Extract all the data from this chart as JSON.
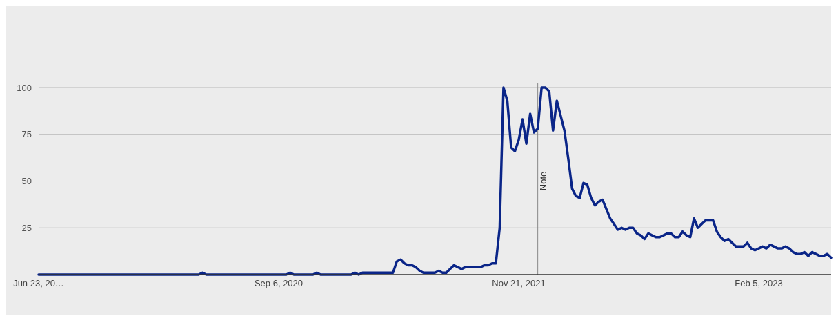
{
  "chart_data": {
    "type": "line",
    "xlim": [
      "2019-06-23",
      "2023-06-18"
    ],
    "ylim": [
      0,
      100
    ],
    "xticks": [
      {
        "value": "2019-06-23",
        "label": "Jun 23, 20…"
      },
      {
        "value": "2020-09-06",
        "label": "Sep 6, 2020"
      },
      {
        "value": "2021-11-21",
        "label": "Nov 21, 2021"
      },
      {
        "value": "2023-02-05",
        "label": "Feb 5, 2023"
      }
    ],
    "yticks": [
      25,
      50,
      75,
      100
    ],
    "grid": "y",
    "marker": "none",
    "line_style": "solid",
    "ref_lines": [
      {
        "axis": "x",
        "value": "2021-12-26",
        "label": "Note",
        "color": "#888888"
      }
    ],
    "series": [
      {
        "color": "#0a2588",
        "x": [
          "2019-06-23",
          "2020-04-12",
          "2020-04-19",
          "2020-04-26",
          "2020-09-20",
          "2020-09-27",
          "2020-10-04",
          "2020-11-08",
          "2020-11-15",
          "2020-11-22",
          "2021-01-17",
          "2021-01-24",
          "2021-01-31",
          "2021-02-07",
          "2021-04-04",
          "2021-04-11",
          "2021-04-18",
          "2021-04-25",
          "2021-05-02",
          "2021-05-09",
          "2021-05-16",
          "2021-05-23",
          "2021-05-30",
          "2021-06-06",
          "2021-06-13",
          "2021-06-20",
          "2021-06-27",
          "2021-07-04",
          "2021-07-11",
          "2021-07-18",
          "2021-07-25",
          "2021-08-01",
          "2021-08-08",
          "2021-08-15",
          "2021-08-22",
          "2021-08-29",
          "2021-09-05",
          "2021-09-12",
          "2021-09-19",
          "2021-09-26",
          "2021-10-03",
          "2021-10-10",
          "2021-10-17",
          "2021-10-24",
          "2021-10-31",
          "2021-11-07",
          "2021-11-14",
          "2021-11-21",
          "2021-11-28",
          "2021-12-05",
          "2021-12-12",
          "2021-12-19",
          "2021-12-26",
          "2022-01-02",
          "2022-01-09",
          "2022-01-16",
          "2022-01-23",
          "2022-01-30",
          "2022-02-06",
          "2022-02-13",
          "2022-02-20",
          "2022-02-27",
          "2022-03-06",
          "2022-03-13",
          "2022-03-20",
          "2022-03-27",
          "2022-04-03",
          "2022-04-10",
          "2022-04-17",
          "2022-04-24",
          "2022-05-01",
          "2022-05-08",
          "2022-05-15",
          "2022-05-22",
          "2022-05-29",
          "2022-06-05",
          "2022-06-12",
          "2022-06-19",
          "2022-06-26",
          "2022-07-03",
          "2022-07-10",
          "2022-07-17",
          "2022-07-24",
          "2022-07-31",
          "2022-08-07",
          "2022-08-14",
          "2022-08-21",
          "2022-08-28",
          "2022-09-04",
          "2022-09-11",
          "2022-09-18",
          "2022-09-25",
          "2022-10-02",
          "2022-10-09",
          "2022-10-16",
          "2022-10-23",
          "2022-10-30",
          "2022-11-06",
          "2022-11-13",
          "2022-11-20",
          "2022-11-27",
          "2022-12-04",
          "2022-12-11",
          "2022-12-18",
          "2022-12-25",
          "2023-01-01",
          "2023-01-08",
          "2023-01-15",
          "2023-01-22",
          "2023-01-29",
          "2023-02-05",
          "2023-02-12",
          "2023-02-19",
          "2023-02-26",
          "2023-03-05",
          "2023-03-12",
          "2023-03-19",
          "2023-03-26",
          "2023-04-02",
          "2023-04-09",
          "2023-04-16",
          "2023-04-23",
          "2023-04-30",
          "2023-05-07",
          "2023-05-14",
          "2023-05-21",
          "2023-05-28",
          "2023-06-04",
          "2023-06-11",
          "2023-06-18"
        ],
        "values": [
          0,
          0,
          1,
          0,
          0,
          1,
          0,
          0,
          1,
          0,
          0,
          1,
          0,
          1,
          1,
          7,
          8,
          6,
          5,
          5,
          4,
          2,
          1,
          1,
          1,
          1,
          2,
          1,
          1,
          3,
          5,
          4,
          3,
          4,
          4,
          4,
          4,
          4,
          5,
          5,
          6,
          6,
          25,
          100,
          93,
          68,
          66,
          72,
          83,
          70,
          86,
          76,
          78,
          100,
          100,
          98,
          77,
          93,
          85,
          77,
          62,
          46,
          42,
          41,
          49,
          48,
          41,
          37,
          39,
          40,
          35,
          30,
          27,
          24,
          25,
          24,
          25,
          25,
          22,
          21,
          19,
          22,
          21,
          20,
          20,
          21,
          22,
          22,
          20,
          20,
          23,
          21,
          20,
          30,
          25,
          27,
          29,
          29,
          29,
          23,
          20,
          18,
          19,
          17,
          15,
          15,
          15,
          17,
          14,
          13,
          14,
          15,
          14,
          16,
          15,
          14,
          14,
          15,
          14,
          12,
          11,
          11,
          12,
          10,
          12,
          11,
          10,
          10,
          11,
          9
        ]
      }
    ]
  }
}
